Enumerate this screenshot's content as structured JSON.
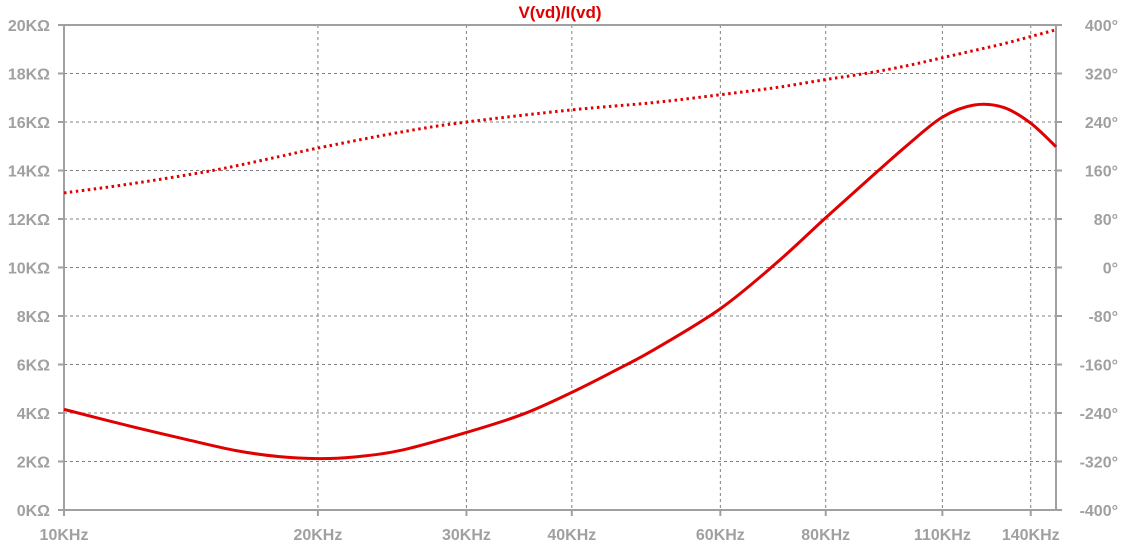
{
  "chart_data": {
    "type": "line",
    "title": "V(vd)/I(vd)",
    "x_scale": "log",
    "x_range_hz": [
      10000,
      150000
    ],
    "x_ticks": [
      {
        "label": "10KHz",
        "value": 10000
      },
      {
        "label": "20KHz",
        "value": 20000
      },
      {
        "label": "30KHz",
        "value": 30000
      },
      {
        "label": "40KHz",
        "value": 40000
      },
      {
        "label": "60KHz",
        "value": 60000
      },
      {
        "label": "80KHz",
        "value": 80000
      },
      {
        "label": "110KHz",
        "value": 110000
      },
      {
        "label": "140KHz",
        "value": 140000
      }
    ],
    "y_left": {
      "range": [
        0,
        20000
      ],
      "ticks": [
        {
          "label": "0KΩ",
          "value": 0
        },
        {
          "label": "2KΩ",
          "value": 2000
        },
        {
          "label": "4KΩ",
          "value": 4000
        },
        {
          "label": "6KΩ",
          "value": 6000
        },
        {
          "label": "8KΩ",
          "value": 8000
        },
        {
          "label": "10KΩ",
          "value": 10000
        },
        {
          "label": "12KΩ",
          "value": 12000
        },
        {
          "label": "14KΩ",
          "value": 14000
        },
        {
          "label": "16KΩ",
          "value": 16000
        },
        {
          "label": "18KΩ",
          "value": 18000
        },
        {
          "label": "20KΩ",
          "value": 20000
        }
      ]
    },
    "y_right": {
      "range": [
        -400,
        400
      ],
      "ticks": [
        {
          "label": "-400°",
          "value": -400
        },
        {
          "label": "-320°",
          "value": -320
        },
        {
          "label": "-240°",
          "value": -240
        },
        {
          "label": "-160°",
          "value": -160
        },
        {
          "label": "-80°",
          "value": -80
        },
        {
          "label": "0°",
          "value": 0
        },
        {
          "label": "80°",
          "value": 80
        },
        {
          "label": "160°",
          "value": 160
        },
        {
          "label": "240°",
          "value": 240
        },
        {
          "label": "320°",
          "value": 320
        },
        {
          "label": "400°",
          "value": 400
        }
      ]
    },
    "grid": true,
    "series": [
      {
        "axis": "left",
        "style": "solid",
        "color": "#e00000",
        "x": [
          10000,
          12000,
          14000,
          16000,
          18000,
          20000,
          22000,
          25000,
          30000,
          35000,
          40000,
          45000,
          50000,
          60000,
          70000,
          80000,
          90000,
          100000,
          110000,
          120000,
          130000,
          140000,
          150000
        ],
        "y": [
          4150,
          3450,
          2900,
          2450,
          2200,
          2120,
          2180,
          2450,
          3200,
          3950,
          4850,
          5750,
          6600,
          8300,
          10200,
          12050,
          13650,
          15050,
          16200,
          16700,
          16600,
          15950,
          14980
        ]
      },
      {
        "axis": "right",
        "style": "dotted",
        "color": "#e00000",
        "x": [
          10000,
          12000,
          15000,
          18000,
          20000,
          25000,
          30000,
          40000,
          50000,
          60000,
          70000,
          80000,
          90000,
          100000,
          110000,
          120000,
          130000,
          140000,
          150000
        ],
        "y": [
          123,
          138,
          160,
          183,
          197,
          223,
          240,
          260,
          272,
          285,
          297,
          310,
          321,
          333,
          346,
          358,
          369,
          381,
          392
        ]
      }
    ]
  }
}
